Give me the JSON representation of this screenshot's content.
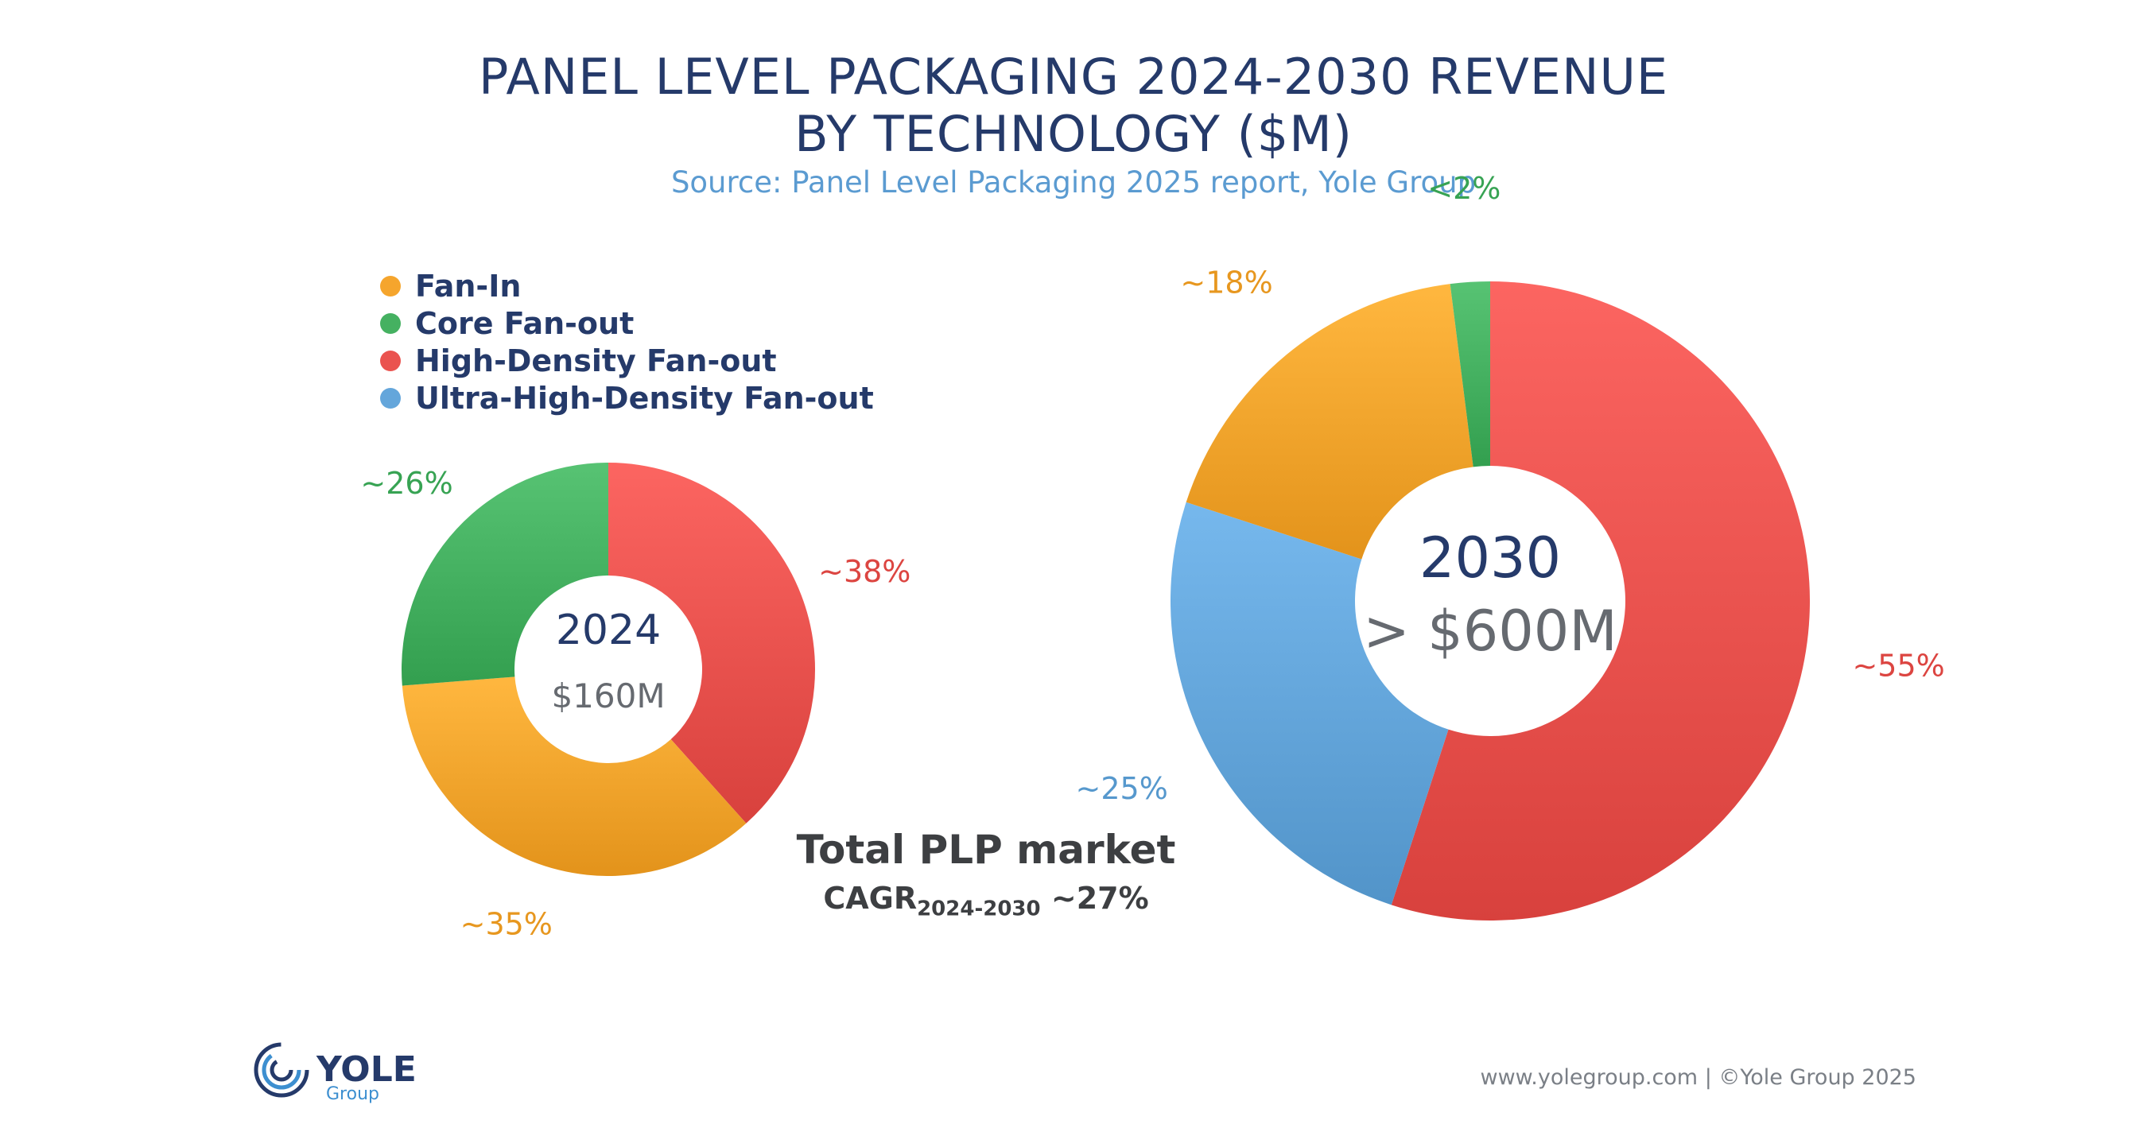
{
  "title_line1": "PANEL LEVEL PACKAGING 2024-2030 REVENUE",
  "title_line2": "BY TECHNOLOGY ($M)",
  "subtitle": "Source: Panel Level Packaging 2025 report, Yole Group",
  "legend": [
    {
      "label": "Fan-In",
      "color": "#f5a52d"
    },
    {
      "label": "Core Fan-out",
      "color": "#45b161"
    },
    {
      "label": "High-Density Fan-out",
      "color": "#ea534f"
    },
    {
      "label": "Ultra-High-Density Fan-out",
      "color": "#64a6db"
    }
  ],
  "colors": {
    "fan_in": "#f5a52d",
    "core": "#45b161",
    "hd": "#ea534f",
    "uhd": "#64a6db",
    "title": "#253a6a",
    "subtitle": "#5b9bd1"
  },
  "chart_data": [
    {
      "type": "pie",
      "title": "2024",
      "center_value": "$160M",
      "categories": [
        "High-Density Fan-out",
        "Fan-In",
        "Core Fan-out"
      ],
      "values": [
        38,
        35,
        26
      ],
      "labels": [
        "~38%",
        "~35%",
        "~26%"
      ],
      "colors": [
        "#ea534f",
        "#f5a52d",
        "#45b161"
      ]
    },
    {
      "type": "pie",
      "title": "2030",
      "center_value": "> $600M",
      "categories": [
        "High-Density Fan-out",
        "Ultra-High-Density Fan-out",
        "Fan-In",
        "Core Fan-out"
      ],
      "values": [
        55,
        25,
        18,
        2
      ],
      "labels": [
        "~55%",
        "~25%",
        "~18%",
        "<2%"
      ],
      "colors": [
        "#ea534f",
        "#64a6db",
        "#f5a52d",
        "#45b161"
      ]
    }
  ],
  "total": {
    "title": "Total PLP market",
    "cagr_prefix": "CAGR",
    "cagr_sub": "2024-2030",
    "cagr_value": " ~27%"
  },
  "logo": {
    "name": "YOLE",
    "sub": "Group"
  },
  "footer": "www.yolegroup.com | ©Yole Group 2025"
}
